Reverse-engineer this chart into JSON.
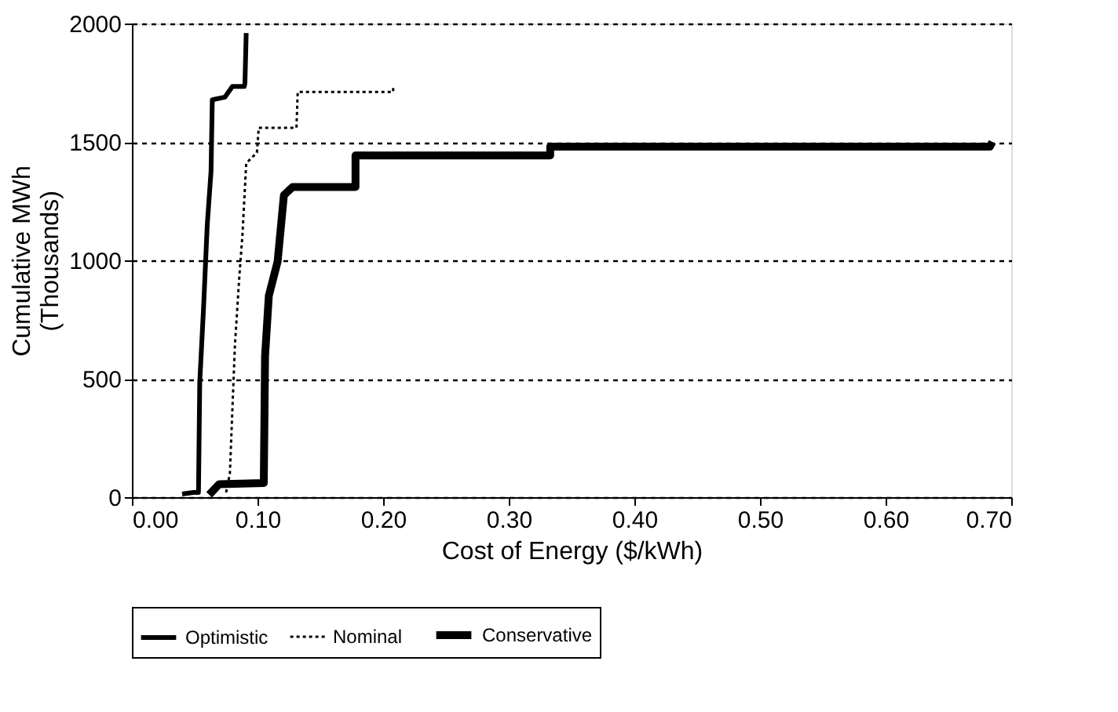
{
  "chart_data": {
    "type": "line",
    "xlabel": "Cost of Energy ($/kWh)",
    "ylabel": "Cumulative MWh (Thousands)",
    "xlim": [
      0,
      0.7
    ],
    "xticks": [
      {
        "value": 0,
        "label": "0.00"
      },
      {
        "value": 0.1,
        "label": "0.10"
      },
      {
        "value": 0.2,
        "label": "0.20"
      },
      {
        "value": 0.3,
        "label": "0.30"
      },
      {
        "value": 0.4,
        "label": "0.40"
      },
      {
        "value": 0.5,
        "label": "0.50"
      },
      {
        "value": 0.6,
        "label": "0.60"
      },
      {
        "value": 0.7,
        "label": "0.70"
      }
    ],
    "ylim": [
      0,
      2000
    ],
    "yticks": [
      0,
      500,
      1000,
      1500,
      2000
    ],
    "grid": "y",
    "legend": "bottom",
    "marker": "none",
    "series": [
      {
        "name": "Optimistic",
        "color": "#000000",
        "line_style": "solid",
        "x": [
          0.04,
          0.049,
          0.053,
          0.054,
          0.057,
          0.06,
          0.063,
          0.064,
          0.074,
          0.08,
          0.0895,
          0.09,
          0.091
        ],
        "values": [
          13,
          20,
          20,
          483,
          795,
          1152,
          1376,
          1678,
          1689,
          1734,
          1734,
          1750,
          1960
        ]
      },
      {
        "name": "Nominal",
        "color": "#000000",
        "line_style": "dotted",
        "x": [
          0.075,
          0.078,
          0.082,
          0.0855,
          0.088,
          0.091,
          0.0995,
          0.101,
          0.131,
          0.132,
          0.208,
          0.208
        ],
        "values": [
          20,
          100,
          640,
          930,
          1107,
          1410,
          1455,
          1560,
          1560,
          1711,
          1711,
          1740
        ]
      },
      {
        "name": "Conservative",
        "color": "#000000",
        "line_style": "solid",
        "x": [
          0.0615,
          0.0695,
          0.105,
          0.106,
          0.109,
          0.116,
          0.121,
          0.128,
          0.178,
          0.178,
          0.333,
          0.333,
          0.683,
          0.685
        ],
        "values": [
          10,
          55,
          60,
          595,
          850,
          995,
          1275,
          1310,
          1310,
          1443,
          1443,
          1480,
          1480,
          1500
        ]
      }
    ]
  }
}
